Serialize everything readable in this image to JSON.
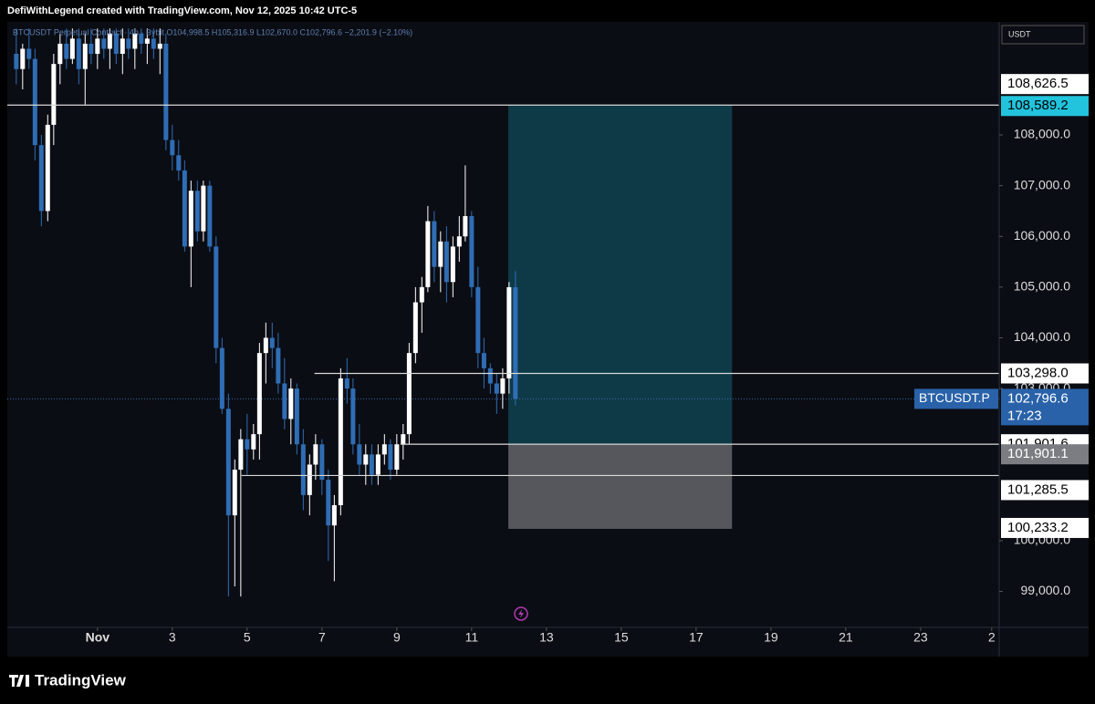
{
  "chart_data": {
    "type": "candlestick",
    "title": "DefiWithLegend created with TradingView.com, Nov 12, 2025 10:42 UTC-5",
    "legend": "BTCUSDT Perpetual Contract · 4h · Bybit  O104,998.5 H105,316.9 L102,670.0 C102,796.6 −2,201.9 (−2.10%)",
    "currency": "USDT",
    "brand": "TradingView",
    "up_color": "#ffffff",
    "down_color": "#2f6db5",
    "x": [
      -1.17,
      -1,
      -0.83,
      -0.67,
      -0.5,
      -0.33,
      -0.17,
      0,
      0.17,
      0.33,
      0.5,
      0.67,
      0.83,
      1,
      1.17,
      1.33,
      1.5,
      1.67,
      1.83,
      2,
      2.17,
      2.33,
      2.5,
      2.67,
      2.83,
      3,
      3.17,
      3.33,
      3.5,
      3.67,
      3.83,
      4,
      4.17,
      4.33,
      4.5,
      4.67,
      4.83,
      5,
      5.17,
      5.33,
      5.5,
      5.67,
      5.83,
      6,
      6.17,
      6.33,
      6.5,
      6.67,
      6.83,
      7,
      7.17,
      7.33,
      7.5,
      7.67,
      7.83,
      8,
      8.17,
      8.33,
      8.5,
      8.67,
      8.83,
      9,
      9.17,
      9.33,
      9.5,
      9.67,
      9.83,
      10,
      10.17,
      10.33,
      10.5,
      10.67,
      10.83,
      11,
      11.17,
      11.33,
      11.5,
      11.67,
      11.83,
      12,
      12.17
    ],
    "open": [
      109600,
      109300,
      109700,
      109500,
      107800,
      106500,
      108200,
      109400,
      109800,
      109500,
      109900,
      109300,
      109800,
      109600,
      109900,
      109700,
      110000,
      109600,
      109900,
      109700,
      110000,
      109800,
      109900,
      109700,
      109800,
      107900,
      107600,
      107300,
      105800,
      106900,
      106100,
      107000,
      105800,
      103800,
      102600,
      100500,
      101400,
      102000,
      101800,
      102100,
      103700,
      104000,
      103800,
      103100,
      102400,
      103000,
      101900,
      100900,
      101500,
      101900,
      101200,
      100300,
      100700,
      103200,
      103000,
      101900,
      101500,
      101700,
      101300,
      101700,
      101900,
      101400,
      101900,
      102100,
      103700,
      104700,
      105000,
      106300,
      105400,
      105900,
      105100,
      105800,
      106000,
      106400,
      105000,
      103700,
      103400,
      103100,
      102900,
      103200,
      104998.5
    ],
    "high": [
      110100,
      109800,
      110100,
      109700,
      108000,
      108400,
      109600,
      110000,
      110100,
      110100,
      110100,
      110000,
      110100,
      110100,
      110100,
      110100,
      110100,
      110100,
      110100,
      110100,
      110100,
      110100,
      110100,
      110100,
      110000,
      108200,
      107900,
      107500,
      107100,
      107100,
      107100,
      107100,
      106000,
      104000,
      102900,
      101600,
      102200,
      102500,
      102300,
      103900,
      104300,
      104300,
      104100,
      103600,
      103200,
      103100,
      102200,
      101700,
      102100,
      102000,
      101400,
      100900,
      103400,
      103600,
      103200,
      102300,
      101900,
      101900,
      101900,
      102100,
      102000,
      102100,
      102300,
      103900,
      105000,
      105200,
      106600,
      106500,
      106100,
      106200,
      106000,
      106400,
      107400,
      106500,
      105400,
      104000,
      103500,
      103300,
      103400,
      105100,
      105316.9
    ],
    "low": [
      109000,
      108900,
      109300,
      107500,
      106200,
      106300,
      107800,
      109000,
      109300,
      109400,
      109000,
      108600,
      109400,
      109300,
      109500,
      109300,
      109400,
      109200,
      109500,
      109300,
      109600,
      109400,
      109500,
      109200,
      107700,
      107300,
      107100,
      105700,
      105000,
      105900,
      105900,
      105700,
      103500,
      102500,
      98900,
      99100,
      98900,
      101300,
      101600,
      101600,
      103100,
      103400,
      102900,
      102200,
      101900,
      101700,
      100600,
      100500,
      101200,
      100900,
      99600,
      99200,
      100500,
      102700,
      101700,
      101300,
      101100,
      101100,
      101100,
      101500,
      101200,
      101300,
      101600,
      101900,
      103500,
      104100,
      104900,
      105100,
      104900,
      104700,
      104800,
      105500,
      105900,
      104800,
      103400,
      103000,
      102900,
      102500,
      102600,
      102900,
      102670
    ],
    "close": [
      109300,
      109700,
      109500,
      107800,
      106500,
      108200,
      109400,
      109800,
      109500,
      109900,
      109300,
      109800,
      109600,
      109900,
      109700,
      110000,
      109600,
      109900,
      109700,
      110000,
      109800,
      109900,
      109700,
      109800,
      107900,
      107600,
      107300,
      105800,
      106900,
      106100,
      107000,
      105800,
      103800,
      102600,
      100500,
      101400,
      102000,
      101800,
      102100,
      103700,
      104000,
      103800,
      103100,
      102400,
      103000,
      101900,
      100900,
      101500,
      101900,
      101200,
      100300,
      100700,
      103200,
      103000,
      101900,
      101500,
      101700,
      101300,
      101700,
      101900,
      101400,
      101900,
      102100,
      103700,
      104700,
      105000,
      106300,
      105400,
      105900,
      105100,
      105800,
      106000,
      106400,
      105000,
      103700,
      103400,
      103100,
      102900,
      103200,
      104998.5,
      102796.6
    ],
    "xlim": [
      -1.41,
      25.1
    ],
    "xticks": [
      {
        "value": 1,
        "label": "Nov"
      },
      3,
      5,
      7,
      9,
      11,
      13,
      15,
      17,
      19,
      21,
      23,
      {
        "value": 24.9,
        "label": "2"
      }
    ],
    "ylim": [
      98290,
      110230
    ],
    "yticks": [
      {
        "value": 108000,
        "label": "108,000.0"
      },
      {
        "value": 107000,
        "label": "107,000.0"
      },
      {
        "value": 106000,
        "label": "106,000.0"
      },
      {
        "value": 105000,
        "label": "105,000.0"
      },
      {
        "value": 104000,
        "label": "104,000.0"
      },
      {
        "value": 103000,
        "label": "103,000.0"
      },
      {
        "value": 100000,
        "label": "100,000.0"
      },
      {
        "value": 99000,
        "label": "99,000.0"
      }
    ],
    "levels": [
      {
        "value": 108589.2,
        "label": "108,589.2",
        "start": -1.41
      },
      {
        "value": 103298,
        "label": "103,298.0",
        "start": 6.8
      },
      {
        "value": 101901.6,
        "label": "101,901.6",
        "start": 9.1
      },
      {
        "value": 101285.5,
        "label": "101,285.5",
        "start": 4.85
      }
    ],
    "last_price": {
      "symbol": "BTCUSDT.P",
      "value": 102796.6,
      "label": "102,796.6",
      "countdown": "17:23"
    },
    "extra_label": {
      "value": 108626.5,
      "label": "108,626.5"
    },
    "position": {
      "x": [
        11.98,
        17.96
      ],
      "target": {
        "value": 108589.2,
        "label": "108,589.2"
      },
      "entry": {
        "value": 101901.1,
        "label": "101,901.1"
      },
      "stop": {
        "value": 100233.2,
        "label": "100,233.2"
      }
    }
  }
}
